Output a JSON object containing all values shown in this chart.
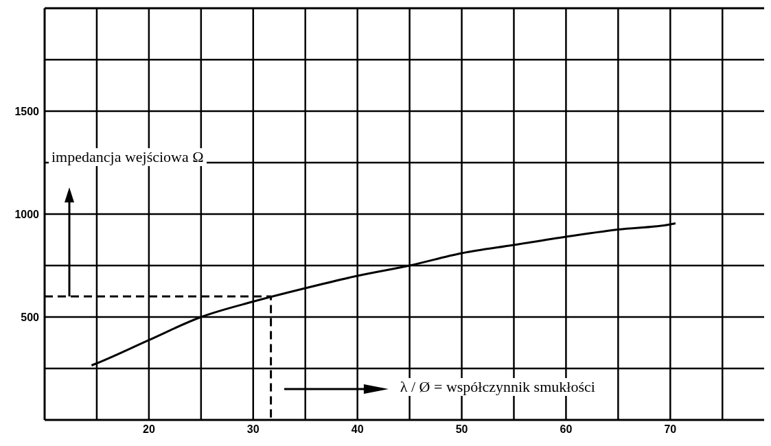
{
  "chart_data": {
    "type": "line",
    "xlabel": "λ / Ø = współczynnik smukłości",
    "ylabel": "impedancja wejściowa Ω",
    "xlim": [
      10,
      79
    ],
    "ylim": [
      0,
      2000
    ],
    "xticks": [
      {
        "value": 15,
        "label": null
      },
      20,
      {
        "value": 25,
        "label": null
      },
      30,
      {
        "value": 35,
        "label": null
      },
      40,
      {
        "value": 45,
        "label": null
      },
      50,
      {
        "value": 55,
        "label": null
      },
      60,
      {
        "value": 65,
        "label": null
      },
      70,
      {
        "value": 75,
        "label": null
      }
    ],
    "yticks": [
      {
        "value": 250,
        "label": null
      },
      500,
      {
        "value": 750,
        "label": null
      },
      1000,
      {
        "value": 1250,
        "label": null
      },
      1500,
      {
        "value": 1750,
        "label": null
      }
    ],
    "grid": true,
    "marker": "none",
    "series": [
      {
        "color": "#000000",
        "line_style": "solid",
        "x": [
          14.5,
          15,
          20,
          25,
          30,
          35,
          40,
          45,
          50,
          55,
          60,
          65,
          70,
          70.5
        ],
        "values": [
          265,
          275,
          388,
          500,
          575,
          640,
          700,
          750,
          810,
          850,
          890,
          925,
          950,
          955
        ]
      },
      {
        "type": "line",
        "color": "#000000",
        "line_style": "dashed",
        "x": [
          10,
          31.7,
          31.7
        ],
        "values": [
          600,
          600,
          0
        ]
      }
    ]
  }
}
